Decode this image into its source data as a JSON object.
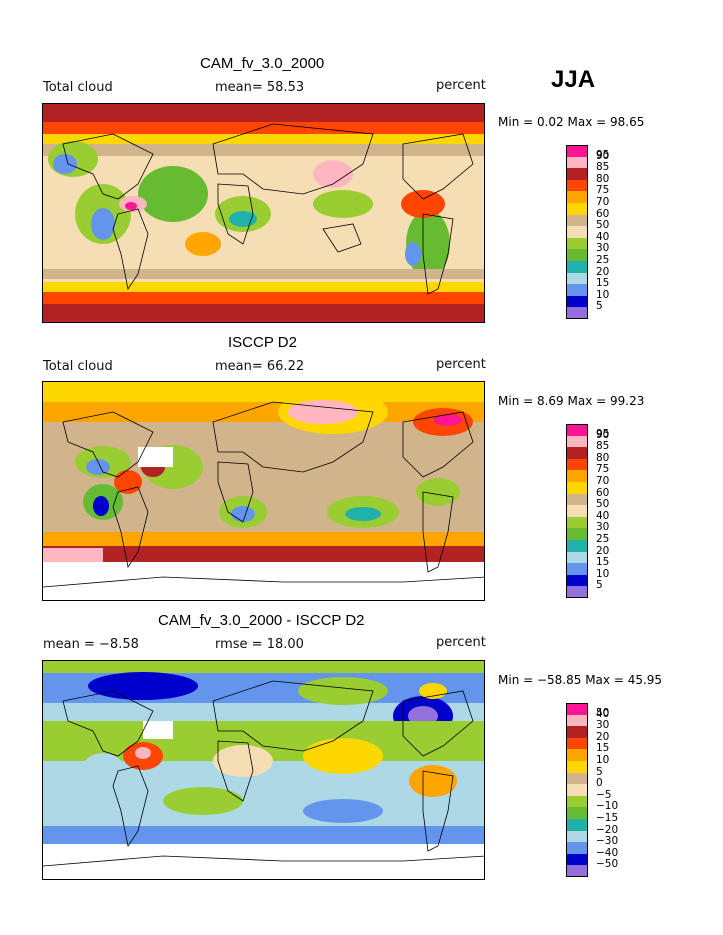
{
  "season": "JJA",
  "panels": [
    {
      "title": "CAM_fv_3.0_2000",
      "left_label": "Total cloud",
      "mid_label": "mean=  58.53",
      "units": "percent",
      "minmax": "Min =    0.02 Max =   98.65",
      "legend": [
        "95",
        "90",
        "85",
        "80",
        "75",
        "70",
        "60",
        "50",
        "40",
        "30",
        "25",
        "20",
        "15",
        "10",
        "5"
      ],
      "colors": [
        "#ff1493",
        "#ffb6c1",
        "#b22222",
        "#ff4500",
        "#ffa500",
        "#ffd700",
        "#d2b48c",
        "#f5deb3",
        "#9acd32",
        "#66bb33",
        "#20b2aa",
        "#add8e6",
        "#6495ed",
        "#0000cd",
        "#9370db"
      ]
    },
    {
      "title": "ISCCP D2",
      "left_label": "Total cloud",
      "mid_label": "mean=  66.22",
      "units": "percent",
      "minmax": "Min =    8.69 Max =   99.23",
      "legend": [
        "95",
        "90",
        "85",
        "80",
        "75",
        "70",
        "60",
        "50",
        "40",
        "30",
        "25",
        "20",
        "15",
        "10",
        "5"
      ],
      "colors": [
        "#ff1493",
        "#ffb6c1",
        "#b22222",
        "#ff4500",
        "#ffa500",
        "#ffd700",
        "#d2b48c",
        "#f5deb3",
        "#9acd32",
        "#66bb33",
        "#20b2aa",
        "#add8e6",
        "#6495ed",
        "#0000cd",
        "#9370db"
      ]
    },
    {
      "title": "CAM_fv_3.0_2000 - ISCCP D2",
      "left_label": "mean =  −8.58",
      "mid_label": "rmse =  18.00",
      "units": "percent",
      "minmax": "Min = −58.85 Max =   45.95",
      "legend": [
        "50",
        "40",
        "30",
        "20",
        "15",
        "10",
        "5",
        "0",
        "−5",
        "−10",
        "−15",
        "−20",
        "−30",
        "−40",
        "−50"
      ],
      "colors": [
        "#ff1493",
        "#ffb6c1",
        "#b22222",
        "#ff4500",
        "#ffa500",
        "#ffd700",
        "#d2b48c",
        "#f5deb3",
        "#9acd32",
        "#66bb33",
        "#20b2aa",
        "#add8e6",
        "#6495ed",
        "#0000cd",
        "#9370db"
      ]
    }
  ]
}
